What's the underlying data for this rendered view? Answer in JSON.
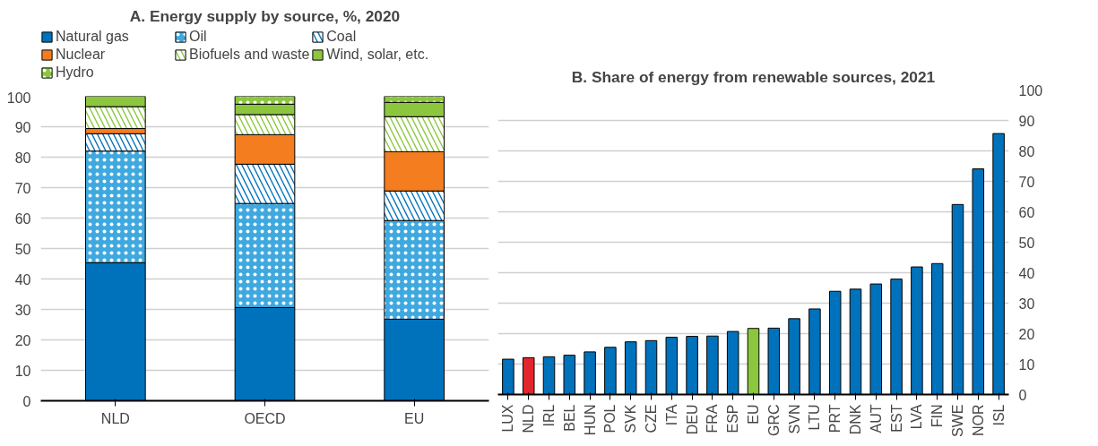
{
  "chart_data": [
    {
      "type": "bar",
      "title": "A. Energy supply by source, %, 2020",
      "categories": [
        "NLD",
        "OECD",
        "EU"
      ],
      "stacked": true,
      "series": [
        {
          "name": "Natural gas",
          "color": "#0072bc",
          "values": [
            45.3,
            30.6,
            26.8
          ]
        },
        {
          "name": "Oil",
          "color": "#3fa9df",
          "values": [
            36.7,
            34.2,
            32.4
          ]
        },
        {
          "name": "Coal",
          "color": "#0072bc",
          "values": [
            5.7,
            12.9,
            9.7
          ]
        },
        {
          "name": "Nuclear",
          "color": "#f47d20",
          "values": [
            1.7,
            9.7,
            12.9
          ]
        },
        {
          "name": "Biofuels and waste",
          "color": "#8cc63f",
          "values": [
            7.2,
            6.6,
            11.5
          ]
        },
        {
          "name": "Wind, solar, etc.",
          "color": "#8cc63f",
          "values": [
            3.4,
            3.4,
            4.7
          ]
        },
        {
          "name": "Hydro",
          "color": "#8cc63f",
          "values": [
            null,
            2.6,
            2.0
          ]
        }
      ],
      "ylim": [
        0,
        100
      ],
      "yticks": [
        0,
        10,
        20,
        30,
        40,
        50,
        60,
        70,
        80,
        90,
        100
      ],
      "grid": "y",
      "legend": "top"
    },
    {
      "type": "bar",
      "title": "B. Share of energy from renewable sources, 2021",
      "categories": [
        "LUX",
        "NLD",
        "IRL",
        "BEL",
        "HUN",
        "POL",
        "SVK",
        "CZE",
        "ITA",
        "DEU",
        "FRA",
        "ESP",
        "EU",
        "GRC",
        "SVN",
        "LTU",
        "PRT",
        "DNK",
        "AUT",
        "EST",
        "LVA",
        "FIN",
        "SWE",
        "NOR",
        "ISL"
      ],
      "values": [
        11.6,
        12.1,
        12.4,
        12.9,
        14.0,
        15.5,
        17.3,
        17.7,
        18.8,
        19.1,
        19.2,
        20.7,
        21.7,
        21.8,
        24.9,
        28.1,
        33.9,
        34.6,
        36.3,
        37.9,
        41.9,
        43.0,
        62.4,
        74.1,
        85.7
      ],
      "colors": [
        "#0072bc",
        "#e3262c",
        "#0072bc",
        "#0072bc",
        "#0072bc",
        "#0072bc",
        "#0072bc",
        "#0072bc",
        "#0072bc",
        "#0072bc",
        "#0072bc",
        "#0072bc",
        "#8cc63f",
        "#0072bc",
        "#0072bc",
        "#0072bc",
        "#0072bc",
        "#0072bc",
        "#0072bc",
        "#0072bc",
        "#0072bc",
        "#0072bc",
        "#0072bc",
        "#0072bc",
        "#0072bc"
      ],
      "ylim": [
        0,
        100
      ],
      "yticks": [
        0,
        10,
        20,
        30,
        40,
        50,
        60,
        70,
        80,
        90,
        100
      ],
      "grid": "y"
    }
  ]
}
